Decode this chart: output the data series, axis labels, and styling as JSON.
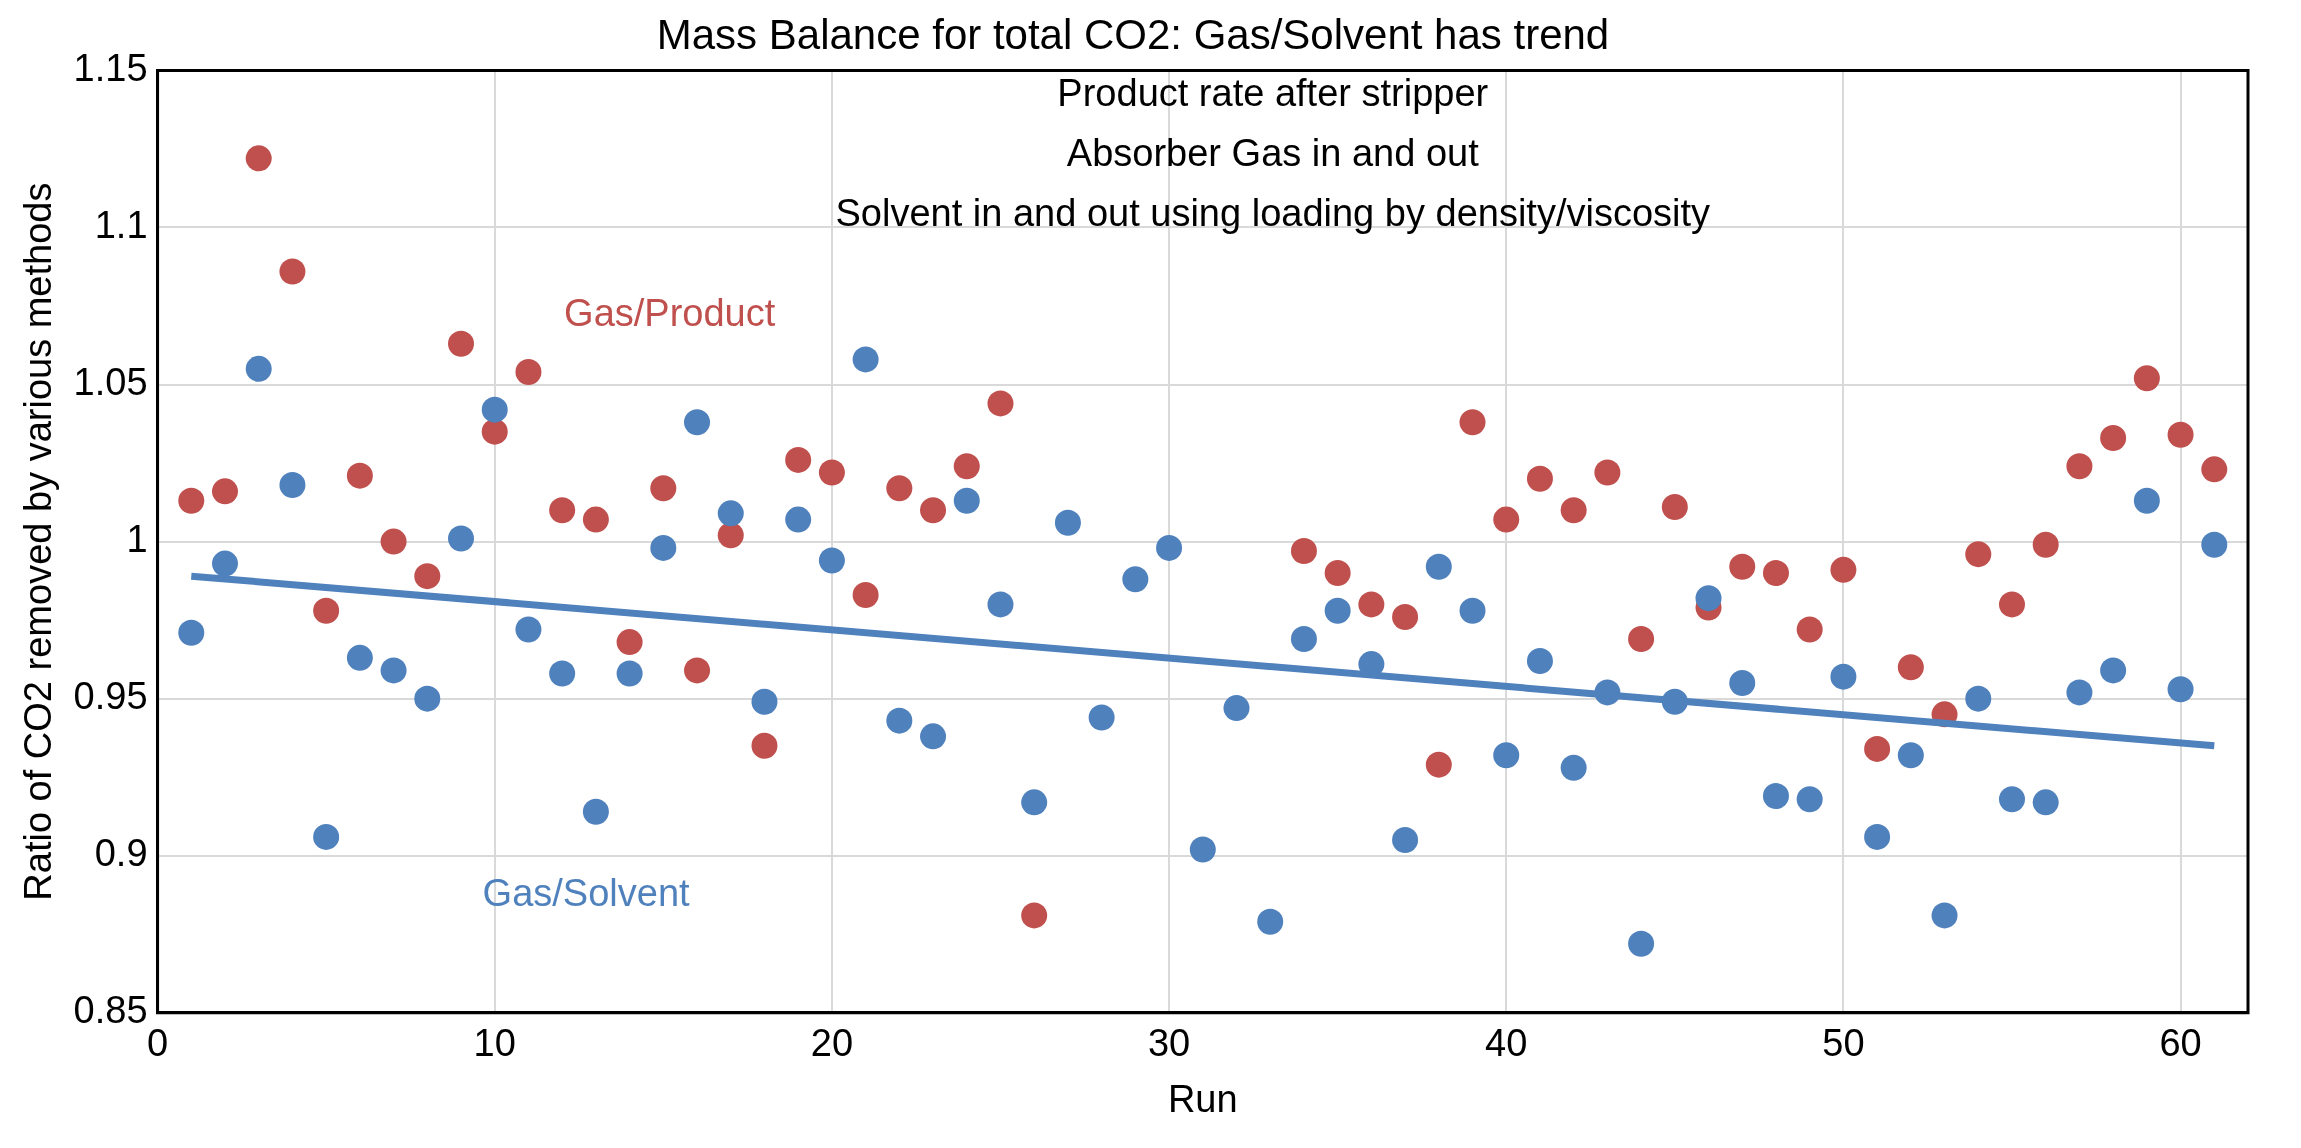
{
  "chart_data": {
    "type": "scatter",
    "title": "Mass Balance for total CO2: Gas/Solvent has trend",
    "xlabel": "Run",
    "ylabel": "Ratio of CO2 removed by various methods",
    "annotations": [
      "Product rate after stripper",
      "Absorber Gas in and out",
      "Solvent in and out using loading by density/viscosity"
    ],
    "x": [
      1,
      2,
      3,
      4,
      5,
      6,
      7,
      8,
      9,
      10,
      11,
      12,
      13,
      14,
      15,
      16,
      17,
      18,
      19,
      20,
      21,
      22,
      23,
      24,
      25,
      26,
      27,
      28,
      29,
      30,
      31,
      32,
      33,
      34,
      35,
      36,
      37,
      38,
      39,
      40,
      41,
      42,
      43,
      44,
      45,
      46,
      47,
      48,
      49,
      50,
      51,
      52,
      53,
      54,
      55,
      56,
      57,
      58,
      59,
      60,
      61
    ],
    "series": [
      {
        "name": "Gas/Product",
        "color": "#c0504d",
        "values": [
          1.013,
          1.016,
          1.122,
          1.086,
          0.978,
          1.021,
          1.0,
          0.989,
          1.063,
          1.035,
          1.054,
          1.01,
          1.007,
          0.968,
          1.017,
          0.959,
          1.002,
          0.935,
          1.026,
          1.022,
          0.983,
          1.017,
          1.01,
          1.024,
          1.044,
          0.881,
          null,
          null,
          null,
          null,
          null,
          null,
          null,
          0.997,
          0.99,
          0.98,
          0.976,
          0.929,
          1.038,
          1.007,
          1.02,
          1.01,
          1.022,
          0.969,
          1.011,
          0.979,
          0.992,
          0.99,
          0.972,
          0.991,
          0.934,
          0.96,
          0.945,
          0.996,
          0.98,
          0.999,
          1.024,
          1.033,
          1.052,
          1.034,
          1.023
        ]
      },
      {
        "name": "Gas/Solvent",
        "color": "#4f81bd",
        "values": [
          0.971,
          0.993,
          1.055,
          1.018,
          0.906,
          0.963,
          0.959,
          0.95,
          1.001,
          1.042,
          0.972,
          0.958,
          0.914,
          0.958,
          0.998,
          1.038,
          1.009,
          0.949,
          1.007,
          0.994,
          1.058,
          0.943,
          0.938,
          1.013,
          0.98,
          0.917,
          1.006,
          0.944,
          0.988,
          0.998,
          0.902,
          0.947,
          0.879,
          0.969,
          0.978,
          0.961,
          0.905,
          0.992,
          0.978,
          0.932,
          0.962,
          0.928,
          0.952,
          0.872,
          0.949,
          0.982,
          0.955,
          0.919,
          0.918,
          0.957,
          0.906,
          0.932,
          0.881,
          0.95,
          0.918,
          0.917,
          0.952,
          0.959,
          1.013,
          0.953,
          0.999
        ]
      },
      {
        "type": "line",
        "color": "#4f81bd",
        "marker": "none",
        "x": [
          1,
          61
        ],
        "values": [
          0.989,
          0.935
        ]
      }
    ],
    "xlim": [
      0,
      62
    ],
    "xticks": [
      0,
      10,
      20,
      30,
      40,
      50,
      60
    ],
    "ylim": [
      0.85,
      1.15
    ],
    "yticks": [
      0.85,
      0.9,
      0.95,
      1,
      1.05,
      1.1,
      1.15
    ],
    "grid": true,
    "legend": false,
    "marker": "circle"
  }
}
